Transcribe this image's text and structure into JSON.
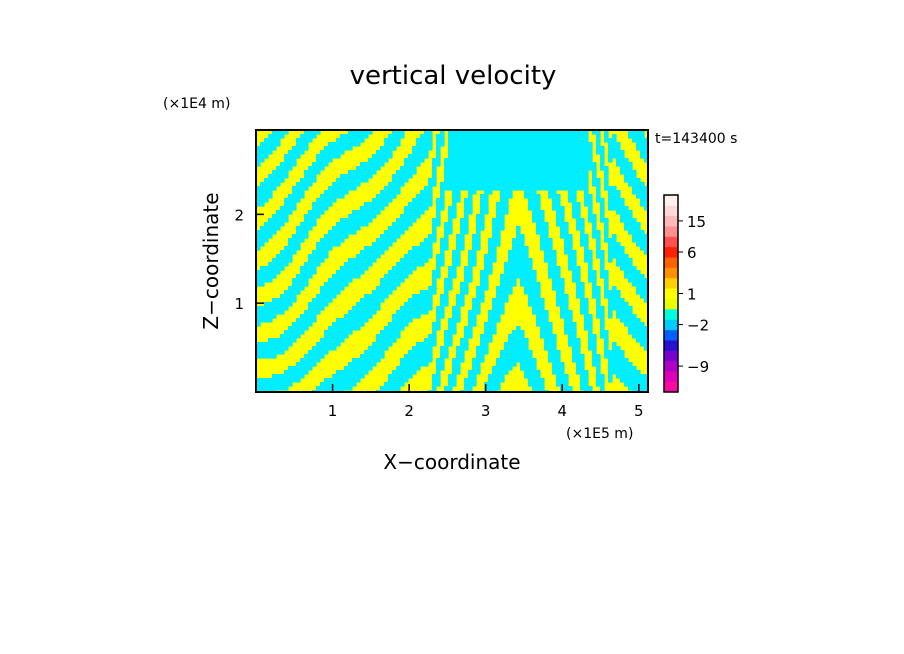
{
  "chart_data": {
    "type": "heatmap",
    "title": "vertical velocity",
    "xlabel": "X−coordinate",
    "ylabel": "Z−coordinate",
    "x_unit": "(×1E5 m)",
    "y_unit": "(×1E4 m)",
    "time_label": "t=143400 s",
    "xlim": [
      0,
      5.12
    ],
    "ylim": [
      0,
      2.95
    ],
    "x_ticks": [
      "1",
      "2",
      "3",
      "4",
      "5"
    ],
    "y_ticks": [
      "1",
      "2"
    ],
    "colorbar": {
      "levels": [
        {
          "color": "#ff0aa0"
        },
        {
          "color": "#e000b8"
        },
        {
          "color": "#b000c8"
        },
        {
          "color": "#7a00d2"
        },
        {
          "color": "#2a10d0"
        },
        {
          "color": "#0060ff"
        },
        {
          "color": "#00ccff"
        },
        {
          "color": "#00ffe0"
        },
        {
          "color": "#e8ff00"
        },
        {
          "color": "#ffff00"
        },
        {
          "color": "#ffd000"
        },
        {
          "color": "#ff9000"
        },
        {
          "color": "#ff6000"
        },
        {
          "color": "#ff2000"
        },
        {
          "color": "#ff5050"
        },
        {
          "color": "#ff9090"
        },
        {
          "color": "#ffb8b8"
        },
        {
          "color": "#ffd8d8"
        },
        {
          "color": "#fff0f0"
        }
      ],
      "labels": [
        {
          "text": "15",
          "level_index": 16
        },
        {
          "text": "6",
          "level_index": 13
        },
        {
          "text": "1",
          "level_index": 9
        },
        {
          "text": "−2",
          "level_index": 6
        },
        {
          "text": "−9",
          "level_index": 2
        }
      ]
    },
    "field_colors": {
      "positive": "#ffff00",
      "negative": "#00eeff"
    }
  }
}
